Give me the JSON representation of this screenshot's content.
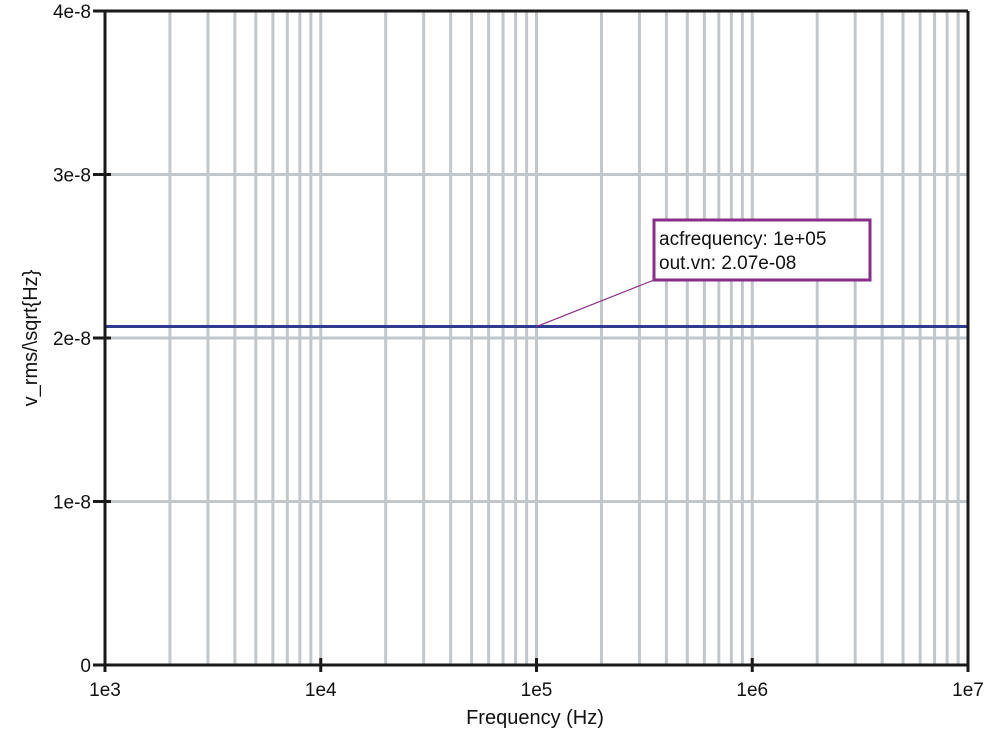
{
  "colors": {
    "grid": "#c2c7cc",
    "axis": "#1a1a1a",
    "series": "#2e3b8f",
    "annotation": "#8a2d8a"
  },
  "chart_data": {
    "type": "line",
    "xlabel": "Frequency (Hz)",
    "ylabel": "v_rms/\\sqrt{Hz}",
    "x_scale": "log",
    "xlim": [
      1000,
      10000000
    ],
    "ylim": [
      0,
      4e-08
    ],
    "x_ticks": [
      1000,
      10000,
      100000,
      1000000,
      10000000
    ],
    "x_tick_labels": [
      "1e3",
      "1e4",
      "1e5",
      "1e6",
      "1e7"
    ],
    "y_ticks": [
      0,
      1e-08,
      2e-08,
      3e-08,
      4e-08
    ],
    "y_tick_labels": [
      "0",
      "1e-8",
      "2e-8",
      "3e-8",
      "4e-8"
    ],
    "grid": true,
    "series": [
      {
        "x": [
          1000,
          10000000
        ],
        "y": [
          2.07e-08,
          2.07e-08
        ]
      }
    ],
    "annotation": {
      "lines": [
        "acfrequency: 1e+05",
        "out.vn: 2.07e-08"
      ],
      "point": [
        100000,
        2.07e-08
      ]
    }
  }
}
